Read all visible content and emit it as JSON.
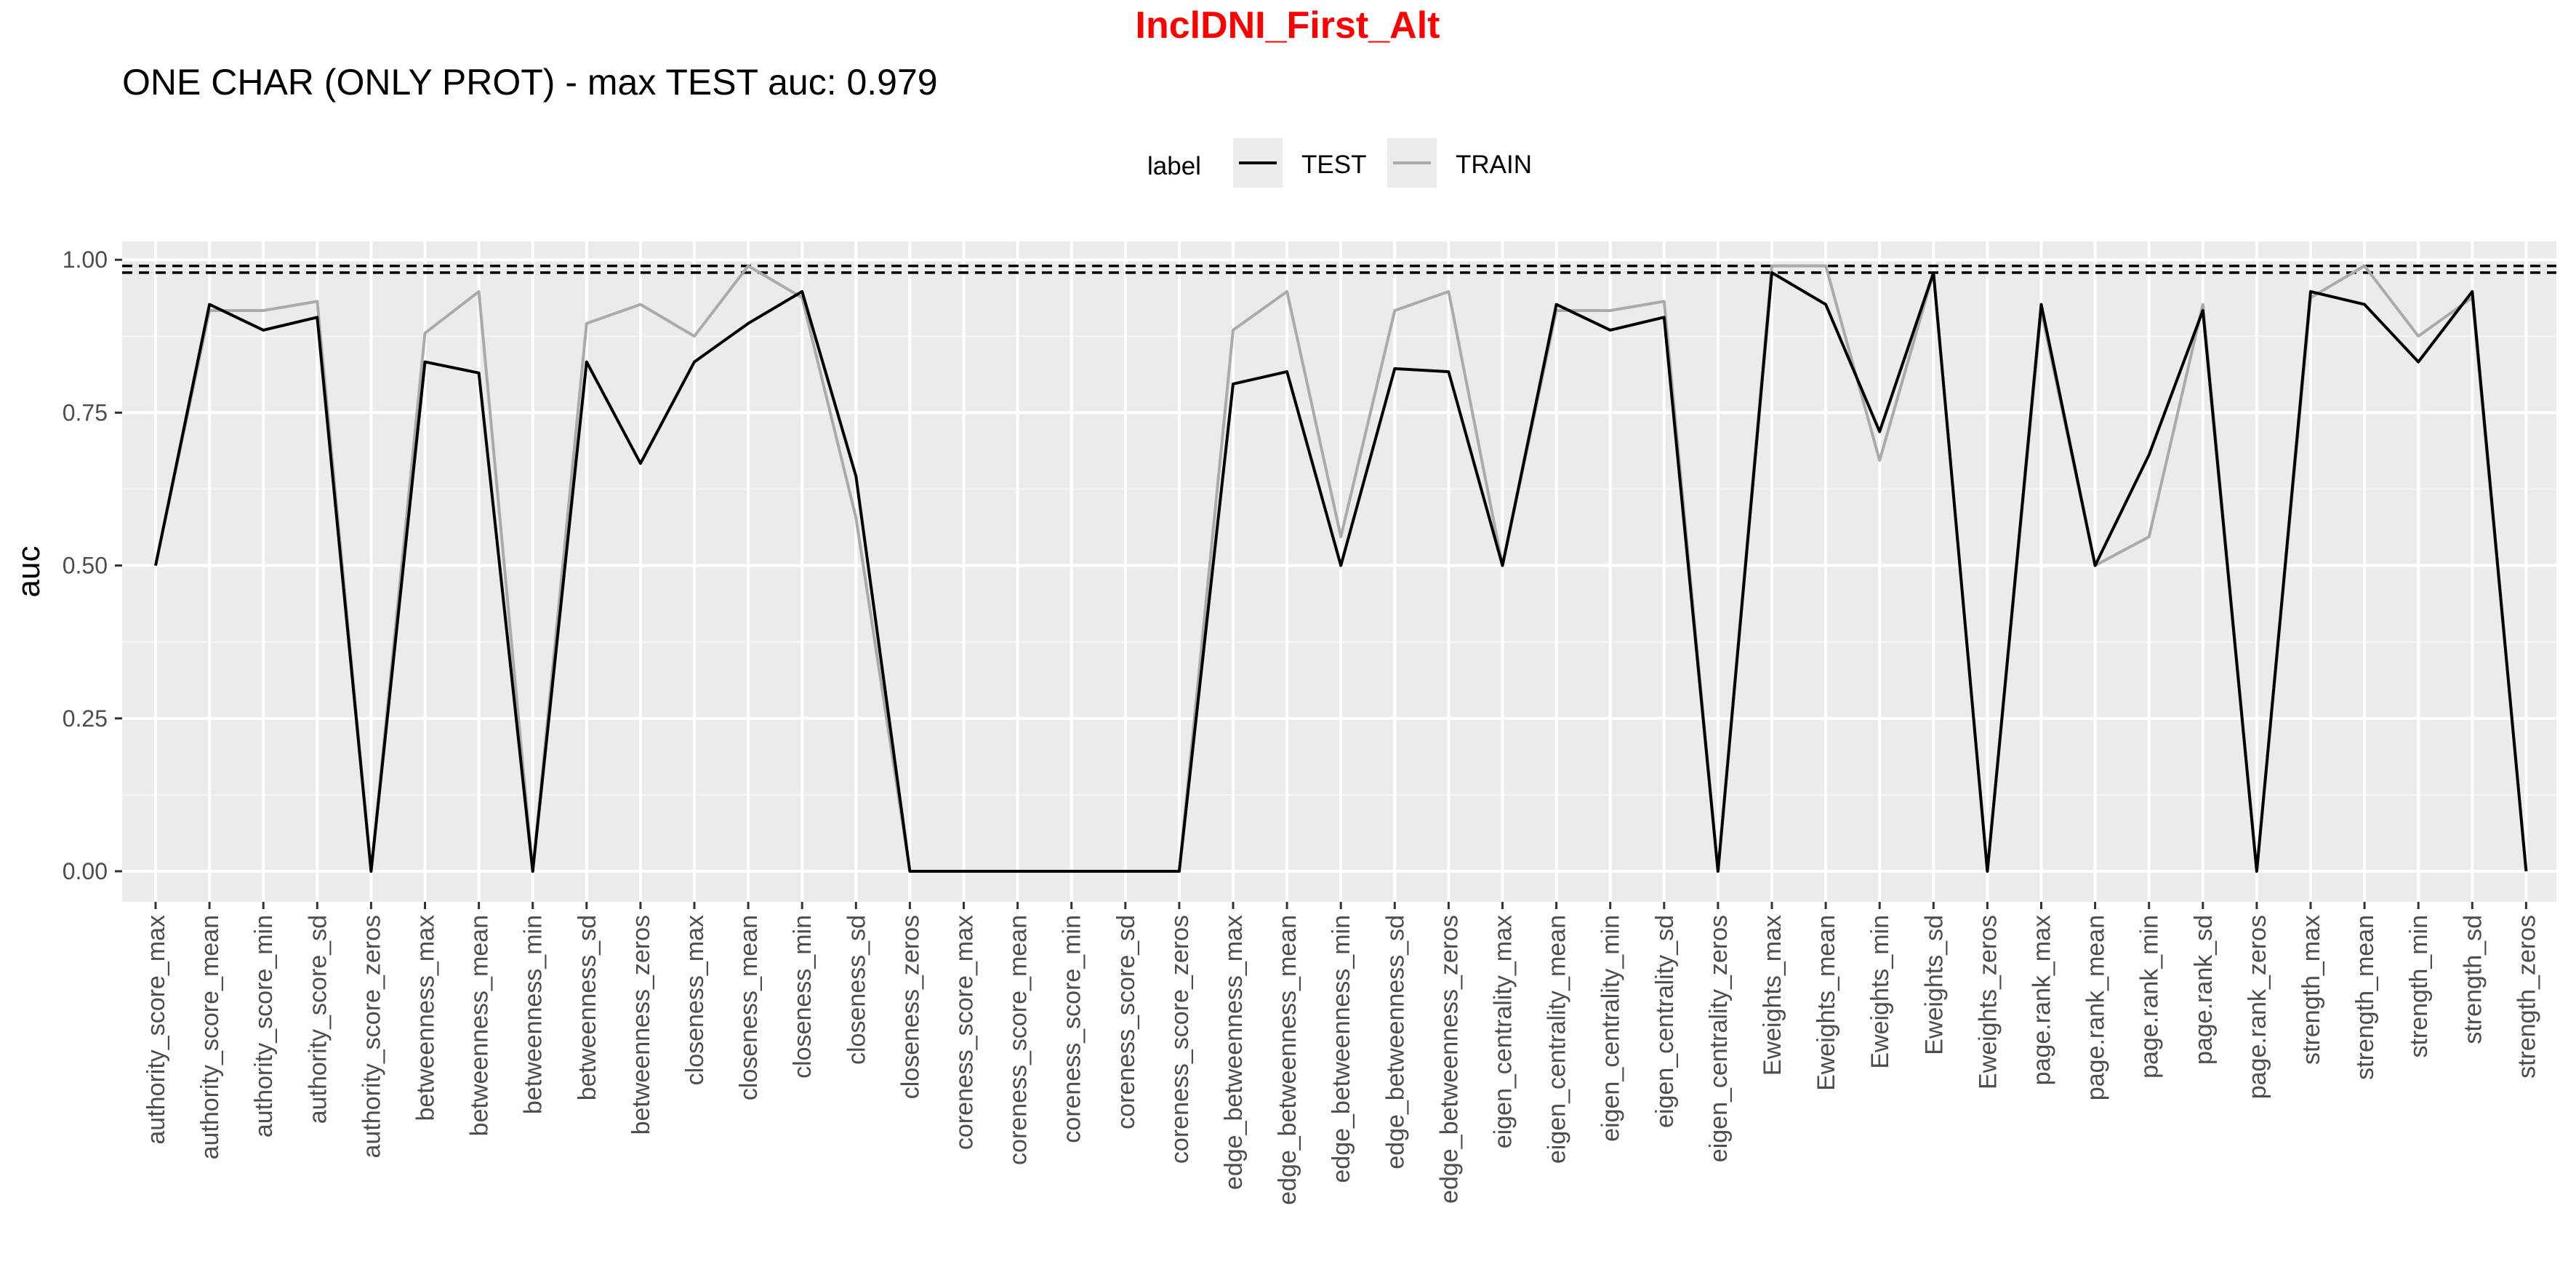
{
  "chart_data": {
    "type": "line",
    "title": "InclDNI_First_Alt",
    "subtitle": "ONE CHAR (ONLY PROT) - max TEST auc: 0.979",
    "xlabel": "",
    "ylabel": "auc",
    "ylim": [
      -0.05,
      1.03
    ],
    "yticks": [
      0.0,
      0.25,
      0.5,
      0.75,
      1.0
    ],
    "ytick_labels": [
      "0.00",
      "0.25",
      "0.50",
      "0.75",
      "1.00"
    ],
    "grid": true,
    "legend": {
      "title": "label",
      "position": "top"
    },
    "reference_lines": [
      0.979,
      0.99
    ],
    "categories": [
      "authority_score_max",
      "authority_score_mean",
      "authority_score_min",
      "authority_score_sd",
      "authority_score_zeros",
      "betweenness_max",
      "betweenness_mean",
      "betweenness_min",
      "betweenness_sd",
      "betweenness_zeros",
      "closeness_max",
      "closeness_mean",
      "closeness_min",
      "closeness_sd",
      "closeness_zeros",
      "coreness_score_max",
      "coreness_score_mean",
      "coreness_score_min",
      "coreness_score_sd",
      "coreness_score_zeros",
      "edge_betweenness_max",
      "edge_betweenness_mean",
      "edge_betweenness_min",
      "edge_betweenness_sd",
      "edge_betweenness_zeros",
      "eigen_centrality_max",
      "eigen_centrality_mean",
      "eigen_centrality_min",
      "eigen_centrality_sd",
      "eigen_centrality_zeros",
      "Eweights_max",
      "Eweights_mean",
      "Eweights_min",
      "Eweights_sd",
      "Eweights_zeros",
      "page.rank_max",
      "page.rank_mean",
      "page.rank_min",
      "page.rank_sd",
      "page.rank_zeros",
      "strength_max",
      "strength_mean",
      "strength_min",
      "strength_sd",
      "strength_zeros"
    ],
    "series": [
      {
        "name": "TEST",
        "color": "#000000",
        "values": [
          0.5,
          0.927,
          0.885,
          0.906,
          0.0,
          0.833,
          0.815,
          0.0,
          0.833,
          0.667,
          0.833,
          0.896,
          0.948,
          0.646,
          0.0,
          0.0,
          0.0,
          0.0,
          0.0,
          0.0,
          0.797,
          0.817,
          0.5,
          0.822,
          0.817,
          0.5,
          0.927,
          0.885,
          0.906,
          0.0,
          0.979,
          0.927,
          0.719,
          0.979,
          0.0,
          0.927,
          0.5,
          0.681,
          0.917,
          0.0,
          0.948,
          0.927,
          0.833,
          0.948,
          0.0
        ]
      },
      {
        "name": "TRAIN",
        "color": "#aaaaaa",
        "values": [
          0.5,
          0.917,
          0.917,
          0.932,
          0.0,
          0.88,
          0.948,
          0.0,
          0.896,
          0.927,
          0.875,
          0.99,
          0.938,
          0.578,
          0.0,
          0.0,
          0.0,
          0.0,
          0.0,
          0.0,
          0.885,
          0.948,
          0.547,
          0.917,
          0.948,
          0.5,
          0.917,
          0.917,
          0.932,
          0.0,
          0.99,
          0.99,
          0.672,
          0.979,
          0.0,
          0.917,
          0.5,
          0.547,
          0.927,
          0.0,
          0.938,
          0.99,
          0.875,
          0.938,
          0.0
        ]
      }
    ]
  }
}
